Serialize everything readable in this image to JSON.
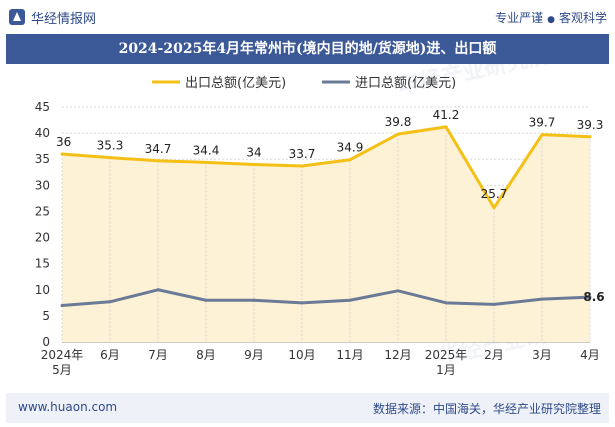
{
  "header": {
    "brand": "华经情报网",
    "tagline": [
      "专业严谨",
      "客观科学"
    ]
  },
  "footer": {
    "website": "www.huaon.com",
    "source": "数据来源：中国海关，华经产业研究院整理"
  },
  "watermark": "华经产业研究院",
  "colors": {
    "title_bg": "#3b5897",
    "export_line": "#f5c016",
    "import_line": "#6b7a96",
    "area_fill": "#fdf1d6"
  },
  "chart_data": {
    "type": "line",
    "title": "2024-2025年4月年常州市(境内目的地/货源地)进、出口额",
    "categories": [
      "2024年\n5月",
      "6月",
      "7月",
      "8月",
      "9月",
      "10月",
      "11月",
      "12月",
      "2025年\n1月",
      "2月",
      "3月",
      "4月"
    ],
    "ylim": [
      0,
      45
    ],
    "yticks": [
      0,
      5,
      10,
      15,
      20,
      25,
      30,
      35,
      40,
      45
    ],
    "grid": "horizontal",
    "legend_position": "top",
    "series": [
      {
        "name": "出口总额(亿美元)",
        "values": [
          36,
          35.3,
          34.7,
          34.4,
          34,
          33.7,
          34.9,
          39.8,
          41.2,
          25.7,
          39.7,
          39.3
        ],
        "area_fill": true
      },
      {
        "name": "进口总额(亿美元)",
        "values": [
          7.0,
          7.7,
          10.0,
          8.0,
          8.0,
          7.5,
          8.0,
          9.8,
          7.5,
          7.2,
          8.2,
          8.6
        ],
        "labels": [
          "",
          "",
          "",
          "",
          "",
          "",
          "",
          "",
          "",
          "",
          "",
          "8.6"
        ]
      }
    ],
    "labels": [
      "36",
      "35.3",
      "34.7",
      "34.4",
      "34",
      "33.7",
      "34.9",
      "39.8",
      "41.2",
      "25.7",
      "39.7",
      "39.3"
    ]
  }
}
